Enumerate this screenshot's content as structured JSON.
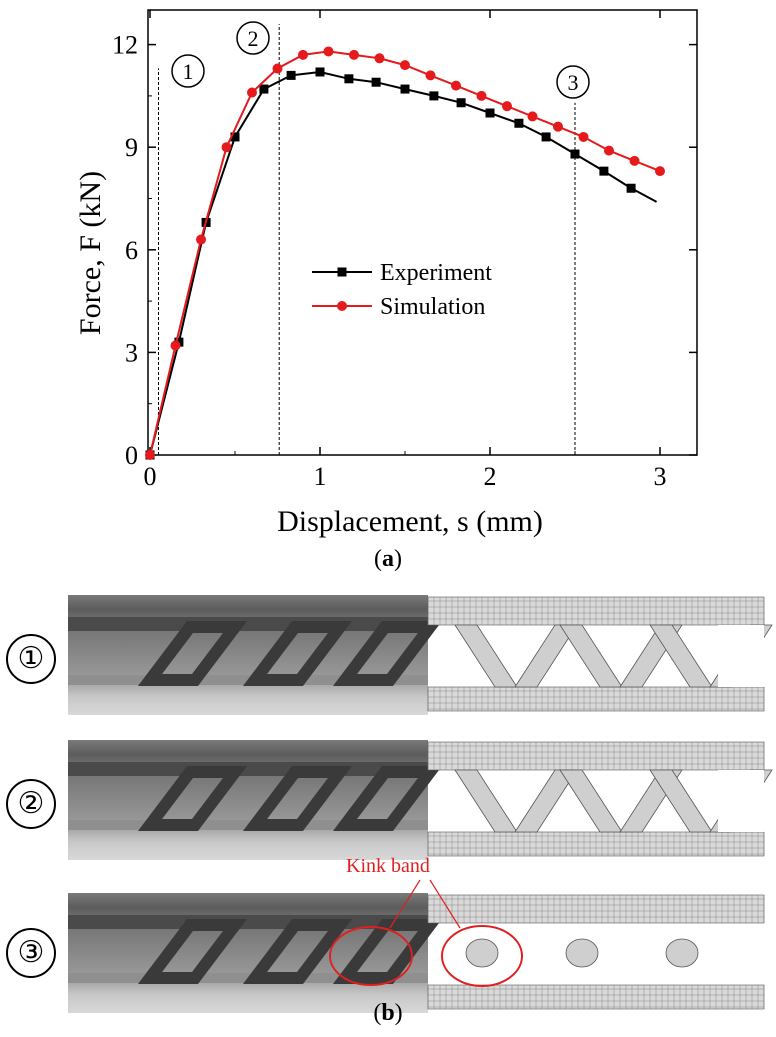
{
  "chart_data": {
    "type": "line",
    "xlabel": "Displacement, s (mm)",
    "ylabel": "Force, F (kN)",
    "xlim": [
      0,
      3.2
    ],
    "ylim": [
      0,
      13
    ],
    "xticks": [
      0,
      1,
      2,
      3
    ],
    "yticks": [
      0,
      3,
      6,
      9,
      12
    ],
    "grid": false,
    "legend": "center",
    "series": [
      {
        "name": "Experiment",
        "color": "#000000",
        "marker": "square",
        "x": [
          0,
          0.17,
          0.33,
          0.5,
          0.67,
          0.83,
          1.0,
          1.17,
          1.33,
          1.5,
          1.67,
          1.83,
          2.0,
          2.17,
          2.33,
          2.5,
          2.67,
          2.83
        ],
        "y": [
          0,
          3.3,
          6.8,
          9.3,
          10.7,
          11.1,
          11.2,
          11.0,
          10.9,
          10.7,
          10.5,
          10.3,
          10.0,
          9.7,
          9.3,
          8.8,
          8.3,
          7.8
        ],
        "line_end": [
          2.98,
          7.4
        ]
      },
      {
        "name": "Simulation",
        "color": "#e41a1c",
        "marker": "circle",
        "x": [
          0,
          0.15,
          0.3,
          0.45,
          0.6,
          0.75,
          0.9,
          1.05,
          1.2,
          1.35,
          1.5,
          1.65,
          1.8,
          1.95,
          2.1,
          2.25,
          2.4,
          2.55,
          2.7,
          2.85,
          3.0
        ],
        "y": [
          0,
          3.2,
          6.3,
          9.0,
          10.6,
          11.3,
          11.7,
          11.8,
          11.7,
          11.6,
          11.4,
          11.1,
          10.8,
          10.5,
          10.2,
          9.9,
          9.6,
          9.3,
          8.9,
          8.6,
          8.3
        ]
      }
    ],
    "vlines": [
      {
        "x": 0.05,
        "label": "①",
        "ymax": 11.3
      },
      {
        "x": 0.76,
        "label": "②",
        "ymax": 12.6
      },
      {
        "x": 2.5,
        "label": "③",
        "ymax": 10.3
      }
    ]
  },
  "captions": {
    "a": "a",
    "b": "b"
  },
  "rows": [
    {
      "label": "①"
    },
    {
      "label": "②"
    },
    {
      "label": "③"
    }
  ],
  "annotation": {
    "kink_band": "Kink band"
  }
}
